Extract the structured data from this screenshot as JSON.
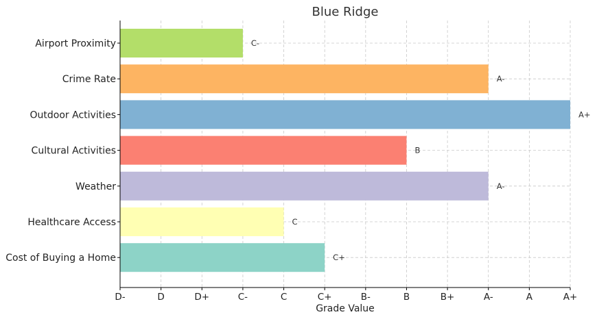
{
  "chart_data": {
    "type": "bar",
    "orientation": "horizontal",
    "title": "Blue Ridge",
    "xlabel": "Grade Value",
    "ylabel": "",
    "grade_scale": [
      "D-",
      "D",
      "D+",
      "C-",
      "C",
      "C+",
      "B-",
      "B",
      "B+",
      "A-",
      "A",
      "A+"
    ],
    "xlim": [
      0,
      11
    ],
    "grid": true,
    "categories": [
      "Airport Proximity",
      "Crime Rate",
      "Outdoor Activities",
      "Cultural Activities",
      "Weather",
      "Healthcare Access",
      "Cost of Buying a Home"
    ],
    "values": [
      3,
      9,
      11,
      7,
      9,
      4,
      5
    ],
    "grades": [
      "C-",
      "A-",
      "A+",
      "B",
      "A-",
      "C",
      "C+"
    ],
    "colors": [
      "#b3de69",
      "#fdb462",
      "#80b1d3",
      "#fb8072",
      "#bebada",
      "#ffffb3",
      "#8dd3c7"
    ]
  }
}
